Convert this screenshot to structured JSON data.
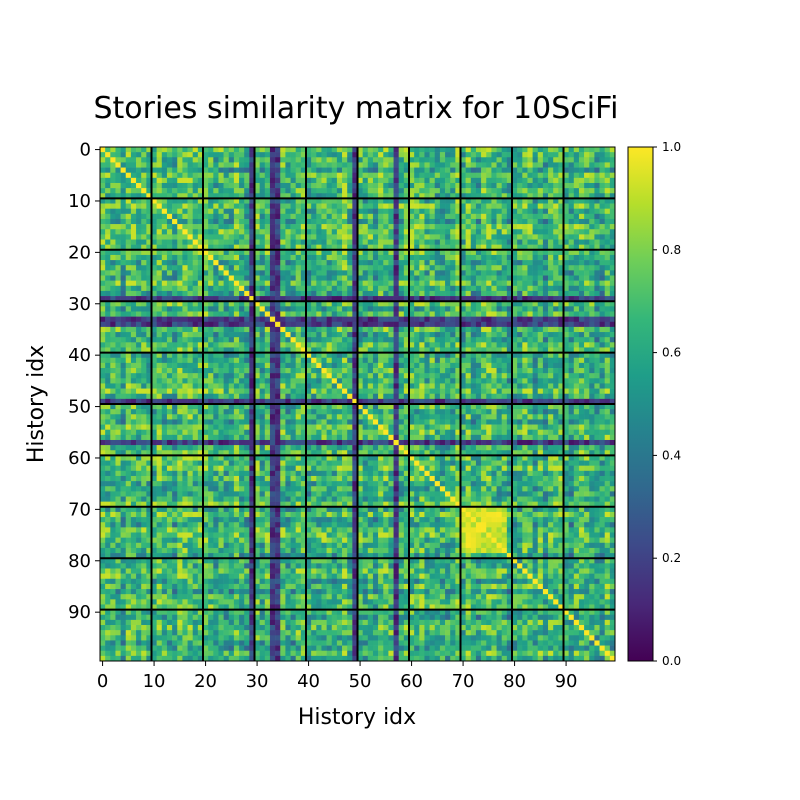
{
  "chart_data": {
    "type": "heatmap",
    "title": "Stories similarity matrix for 10SciFi",
    "xlabel": "History idx",
    "ylabel": "History idx",
    "n": 100,
    "xticks": [
      0,
      10,
      20,
      30,
      40,
      50,
      60,
      70,
      80,
      90
    ],
    "yticks": [
      0,
      10,
      20,
      30,
      40,
      50,
      60,
      70,
      80,
      90
    ],
    "block_boundaries": [
      9.5,
      19.5,
      29.5,
      39.5,
      49.5,
      59.5,
      69.5,
      79.5,
      89.5
    ],
    "colormap": "viridis",
    "vmin": 0.0,
    "vmax": 1.0,
    "colorbar_ticks": [
      0.0,
      0.2,
      0.4,
      0.6,
      0.8,
      1.0
    ],
    "colorbar_tick_labels": [
      "0.0",
      "0.2",
      "0.4",
      "0.6",
      "0.8",
      "1.0"
    ],
    "diagonal_value": 1.0,
    "typical_off_diagonal_range": [
      0.45,
      0.85
    ],
    "low_similarity_rows": {
      "indices": [
        29,
        33,
        34,
        49,
        57
      ],
      "value_range": [
        0.05,
        0.3
      ]
    },
    "high_similarity_block": {
      "range": [
        70,
        78
      ],
      "value_range": [
        0.85,
        1.0
      ]
    }
  },
  "colors": {
    "grid_line": "#000000",
    "viridis_stops": [
      "#440154",
      "#482878",
      "#3e4989",
      "#31688e",
      "#26828e",
      "#1f9e89",
      "#35b779",
      "#6ece58",
      "#b5de2b",
      "#fde725"
    ]
  }
}
